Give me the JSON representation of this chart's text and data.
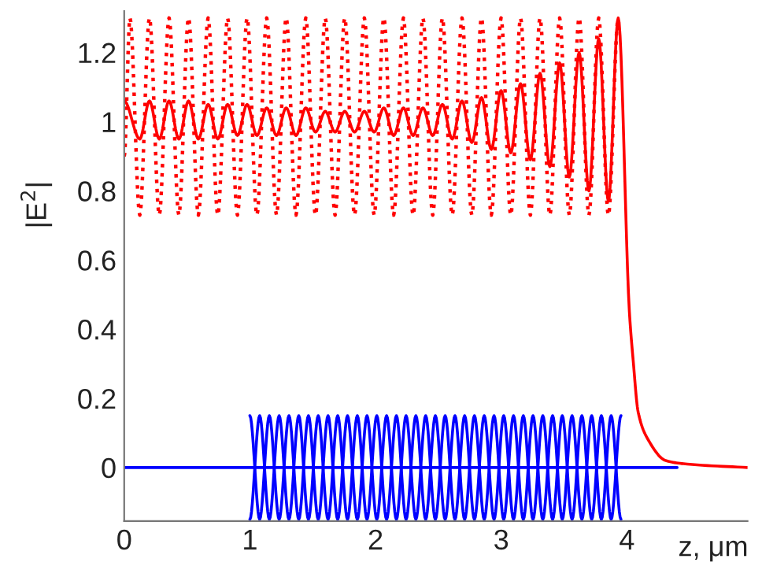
{
  "chart_data": {
    "type": "line",
    "xlabel": "z, μm",
    "ylabel": "|E$^{2}$|",
    "xlim": [
      0,
      4.96
    ],
    "xticks": [
      0,
      1,
      2,
      3,
      4
    ],
    "ylim": [
      -0.155,
      1.32
    ],
    "yticks": [
      0,
      0.2,
      0.4,
      0.6,
      0.8,
      1,
      1.2
    ],
    "grid": false,
    "legend": false,
    "marker": "none",
    "series": [
      {
        "color": "#0000ff",
        "line_style": "solid",
        "x": [
          0,
          4.4
        ],
        "values": [
          0,
          0
        ]
      },
      {
        "color": "#0000ff",
        "line_style": "solid",
        "x": [
          1.0,
          1.078,
          1.155,
          1.233,
          1.311,
          1.389,
          1.466,
          1.544,
          1.622,
          1.699,
          1.777,
          1.855,
          1.932,
          2.01,
          2.088,
          2.166,
          2.243,
          2.321,
          2.399,
          2.476,
          2.554,
          2.632,
          2.709,
          2.787,
          2.865,
          2.943,
          3.02,
          3.098,
          3.176,
          3.253,
          3.331,
          3.409,
          3.486,
          3.564,
          3.642,
          3.72,
          3.797,
          3.875,
          3.953
        ],
        "values": [
          0.15,
          -0.15,
          0.15,
          -0.15,
          0.15,
          -0.15,
          0.15,
          -0.15,
          0.15,
          -0.15,
          0.15,
          -0.15,
          0.15,
          -0.15,
          0.15,
          -0.15,
          0.15,
          -0.15,
          0.15,
          -0.15,
          0.15,
          -0.15,
          0.15,
          -0.15,
          0.15,
          -0.15,
          0.15,
          -0.15,
          0.15,
          -0.15,
          0.15,
          -0.15,
          0.15,
          -0.15,
          0.15,
          -0.15,
          0.15,
          -0.15,
          0.15
        ]
      },
      {
        "color": "#0000ff",
        "line_style": "solid",
        "x": [
          1.0,
          1.078,
          1.155,
          1.233,
          1.311,
          1.389,
          1.466,
          1.544,
          1.622,
          1.699,
          1.777,
          1.855,
          1.932,
          2.01,
          2.088,
          2.166,
          2.243,
          2.321,
          2.399,
          2.476,
          2.554,
          2.632,
          2.709,
          2.787,
          2.865,
          2.943,
          3.02,
          3.098,
          3.176,
          3.253,
          3.331,
          3.409,
          3.486,
          3.564,
          3.642,
          3.72,
          3.797,
          3.875,
          3.953
        ],
        "values": [
          -0.15,
          0.15,
          -0.15,
          0.15,
          -0.15,
          0.15,
          -0.15,
          0.15,
          -0.15,
          0.15,
          -0.15,
          0.15,
          -0.15,
          0.15,
          -0.15,
          0.15,
          -0.15,
          0.15,
          -0.15,
          0.15,
          -0.15,
          0.15,
          -0.15,
          0.15,
          -0.15,
          0.15,
          -0.15,
          0.15,
          -0.15,
          0.15,
          -0.15,
          0.15,
          -0.15,
          0.15,
          -0.15,
          0.15,
          -0.15,
          0.15,
          -0.15
        ]
      },
      {
        "color": "#ff0000",
        "line_style": "dotted",
        "x": [
          0,
          0.046,
          0.124,
          0.201,
          0.279,
          0.357,
          0.435,
          0.512,
          0.59,
          0.668,
          0.745,
          0.823,
          0.901,
          0.978,
          1.056,
          1.134,
          1.212,
          1.289,
          1.367,
          1.445,
          1.522,
          1.6,
          1.678,
          1.755,
          1.833,
          1.911,
          1.989,
          2.066,
          2.144,
          2.222,
          2.299,
          2.377,
          2.455,
          2.532,
          2.61,
          2.688,
          2.766,
          2.843,
          2.921,
          2.999,
          3.076,
          3.154,
          3.232,
          3.309,
          3.387,
          3.465,
          3.542,
          3.62,
          3.698,
          3.776,
          3.853,
          3.931
        ],
        "values": [
          0.9,
          1.3,
          0.73,
          1.3,
          0.73,
          1.3,
          0.73,
          1.3,
          0.73,
          1.3,
          0.73,
          1.3,
          0.73,
          1.3,
          0.73,
          1.3,
          0.73,
          1.3,
          0.73,
          1.3,
          0.73,
          1.3,
          0.73,
          1.3,
          0.73,
          1.3,
          0.73,
          1.3,
          0.73,
          1.3,
          0.73,
          1.3,
          0.73,
          1.3,
          0.73,
          1.3,
          0.73,
          1.3,
          0.73,
          1.3,
          0.73,
          1.3,
          0.73,
          1.3,
          0.73,
          1.3,
          0.73,
          1.3,
          0.73,
          1.3,
          0.73,
          1.3
        ]
      },
      {
        "color": "#ff0000",
        "line_style": "solid",
        "x": [
          0,
          0.124,
          0.201,
          0.279,
          0.357,
          0.435,
          0.512,
          0.59,
          0.668,
          0.745,
          0.823,
          0.901,
          0.978,
          1.056,
          1.134,
          1.212,
          1.289,
          1.367,
          1.445,
          1.522,
          1.6,
          1.678,
          1.755,
          1.833,
          1.911,
          1.989,
          2.066,
          2.144,
          2.222,
          2.299,
          2.377,
          2.455,
          2.532,
          2.61,
          2.688,
          2.766,
          2.843,
          2.921,
          2.999,
          3.076,
          3.154,
          3.232,
          3.309,
          3.387,
          3.465,
          3.542,
          3.62,
          3.698,
          3.776,
          3.853,
          3.931,
          4.02,
          4.05,
          4.09,
          4.17,
          4.31,
          4.48,
          4.96
        ],
        "values": [
          1.06,
          0.95,
          1.06,
          0.95,
          1.06,
          0.95,
          1.06,
          0.95,
          1.05,
          0.95,
          1.05,
          0.96,
          1.05,
          0.96,
          1.04,
          0.96,
          1.04,
          0.96,
          1.04,
          0.97,
          1.03,
          0.97,
          1.03,
          0.97,
          1.03,
          0.97,
          1.04,
          0.96,
          1.04,
          0.96,
          1.04,
          0.96,
          1.05,
          0.95,
          1.06,
          0.94,
          1.07,
          0.92,
          1.09,
          0.91,
          1.11,
          0.89,
          1.14,
          0.87,
          1.17,
          0.84,
          1.2,
          0.8,
          1.24,
          0.77,
          1.3,
          0.45,
          0.31,
          0.16,
          0.08,
          0.02,
          0.01,
          0
        ]
      }
    ]
  }
}
